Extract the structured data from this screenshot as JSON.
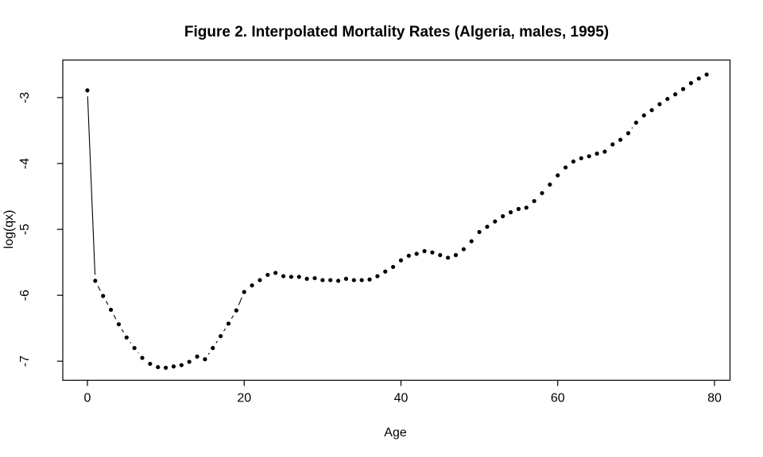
{
  "chart_data": {
    "type": "line",
    "style": "r-base-plot-type-b (dots with short connecting segments trimmed near points)",
    "title": "Figure 2. Interpolated Mortality Rates (Algeria, males, 1995)",
    "xlabel": "Age",
    "ylabel": "log(qx)",
    "x": [
      0,
      1,
      2,
      3,
      4,
      5,
      6,
      7,
      8,
      9,
      10,
      11,
      12,
      13,
      14,
      15,
      16,
      17,
      18,
      19,
      20,
      21,
      22,
      23,
      24,
      25,
      26,
      27,
      28,
      29,
      30,
      31,
      32,
      33,
      34,
      35,
      36,
      37,
      38,
      39,
      40,
      41,
      42,
      43,
      44,
      45,
      46,
      47,
      48,
      49,
      50,
      51,
      52,
      53,
      54,
      55,
      56,
      57,
      58,
      59,
      60,
      61,
      62,
      63,
      64,
      65,
      66,
      67,
      68,
      69,
      70,
      71,
      72,
      73,
      74,
      75,
      76,
      77,
      78,
      79
    ],
    "y": [
      -2.89,
      -5.78,
      -6.01,
      -6.22,
      -6.44,
      -6.64,
      -6.8,
      -6.95,
      -7.04,
      -7.09,
      -7.1,
      -7.08,
      -7.06,
      -7.01,
      -6.93,
      -6.97,
      -6.8,
      -6.62,
      -6.43,
      -6.23,
      -5.95,
      -5.85,
      -5.77,
      -5.69,
      -5.66,
      -5.71,
      -5.72,
      -5.72,
      -5.75,
      -5.74,
      -5.77,
      -5.77,
      -5.78,
      -5.75,
      -5.77,
      -5.77,
      -5.76,
      -5.71,
      -5.64,
      -5.57,
      -5.47,
      -5.4,
      -5.37,
      -5.33,
      -5.35,
      -5.39,
      -5.43,
      -5.39,
      -5.3,
      -5.18,
      -5.04,
      -4.96,
      -4.88,
      -4.8,
      -4.74,
      -4.69,
      -4.67,
      -4.57,
      -4.45,
      -4.32,
      -4.18,
      -4.06,
      -3.97,
      -3.92,
      -3.89,
      -3.85,
      -3.82,
      -3.71,
      -3.64,
      -3.54,
      -3.38,
      -3.27,
      -3.19,
      -3.1,
      -3.02,
      -2.95,
      -2.87,
      -2.78,
      -2.71,
      -2.65
    ],
    "xticks": [
      0,
      20,
      40,
      60,
      80
    ],
    "xtick_labels": [
      "0",
      "20",
      "40",
      "60",
      "80"
    ],
    "yticks": [
      -3,
      -4,
      -5,
      -6,
      -7
    ],
    "ytick_labels": [
      "-3",
      "-4",
      "-5",
      "-6",
      "-7"
    ],
    "xlim": [
      -3.14,
      81.98
    ],
    "ylim": [
      -7.29,
      -2.43
    ],
    "grid": false,
    "legend": null,
    "marker": "filled-circle",
    "colors": {
      "points": "#000000",
      "line": "#000000",
      "axis": "#000000",
      "text": "#000000",
      "background": "#ffffff"
    }
  }
}
